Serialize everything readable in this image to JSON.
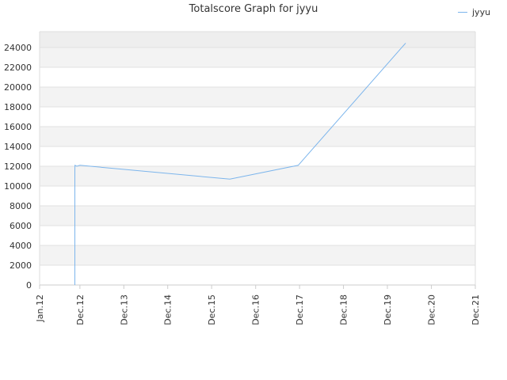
{
  "chart_data": {
    "type": "line",
    "title": "Totalscore Graph for jyyu",
    "xlabel": "",
    "ylabel": "",
    "x_ticks": [
      "Jan.12",
      "Dec.12",
      "Dec.13",
      "Dec.14",
      "Dec.15",
      "Dec.16",
      "Dec.17",
      "Dec.18",
      "Dec.19",
      "Dec.20",
      "Dec.21"
    ],
    "y_ticks": [
      0,
      2000,
      4000,
      6000,
      8000,
      10000,
      12000,
      14000,
      16000,
      18000,
      20000,
      22000,
      24000
    ],
    "ylim": [
      0,
      25600
    ],
    "grid": true,
    "legend_position": "top-right",
    "series": [
      {
        "name": "jyyu",
        "color": "#7cb5ec",
        "points": [
          {
            "x": "2012-10-20",
            "y": 0
          },
          {
            "x": "2012-10-20",
            "y": 11500
          },
          {
            "x": "2012-10-21",
            "y": 12100
          },
          {
            "x": "2012-11-05",
            "y": 12000
          },
          {
            "x": "2012-12-01",
            "y": 12100
          },
          {
            "x": "2016-05-01",
            "y": 10700
          },
          {
            "x": "2017-11-20",
            "y": 12100
          },
          {
            "x": "2020-05-01",
            "y": 24450
          }
        ]
      }
    ]
  }
}
